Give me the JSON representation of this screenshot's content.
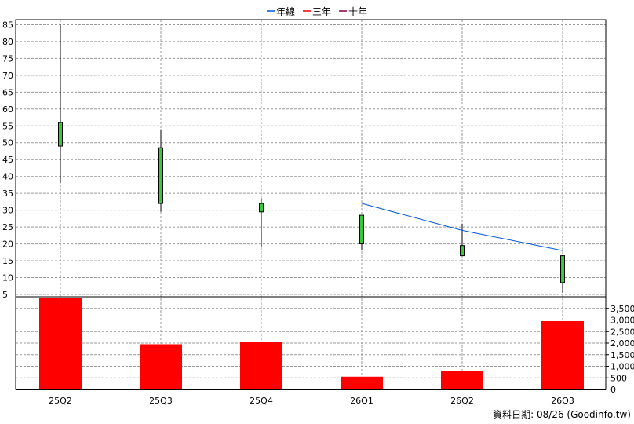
{
  "legend": [
    {
      "label": "年線",
      "color": "#0055dd"
    },
    {
      "label": "三年",
      "color": "#ee0000"
    },
    {
      "label": "十年",
      "color": "#880044"
    }
  ],
  "footer": "資料日期: 08/26  (Goodinfo.tw)",
  "chart_data": {
    "type": "candlestick",
    "categories": [
      "25Q2",
      "25Q3",
      "25Q4",
      "26Q1",
      "26Q2",
      "26Q3"
    ],
    "price": {
      "candles": [
        {
          "open": 49,
          "close": 56,
          "high": 85,
          "low": 38
        },
        {
          "open": 32,
          "close": 48.5,
          "high": 54,
          "low": 29.5
        },
        {
          "open": 29.5,
          "close": 32,
          "high": 33.5,
          "low": 19
        },
        {
          "open": 20,
          "close": 28.5,
          "high": 28.5,
          "low": 18
        },
        {
          "open": 16.5,
          "close": 19.5,
          "high": 26,
          "low": 16.5
        },
        {
          "open": 8.5,
          "close": 16.5,
          "high": 16.5,
          "low": 5.5
        }
      ],
      "up_color": "#33cc33",
      "y_ticks": [
        5,
        10,
        15,
        20,
        25,
        30,
        35,
        40,
        45,
        50,
        55,
        60,
        65,
        70,
        75,
        80,
        85
      ],
      "ylim": [
        4.3,
        86.5
      ]
    },
    "annual_line": {
      "name": "年線",
      "points": [
        {
          "category": "26Q1",
          "value": 32
        },
        {
          "category": "26Q2",
          "value": 24
        },
        {
          "category": "26Q3",
          "value": 18
        }
      ]
    },
    "volume": {
      "values": [
        3950,
        1950,
        2050,
        550,
        800,
        2950
      ],
      "color": "#ff0000",
      "y_ticks": [
        "500",
        "1,000",
        "1,500",
        "2,000",
        "2,500",
        "3,000",
        "3,500"
      ],
      "y_tick_values": [
        500,
        1000,
        1500,
        2000,
        2500,
        3000,
        3500
      ],
      "ylim": [
        0,
        4000
      ]
    }
  }
}
